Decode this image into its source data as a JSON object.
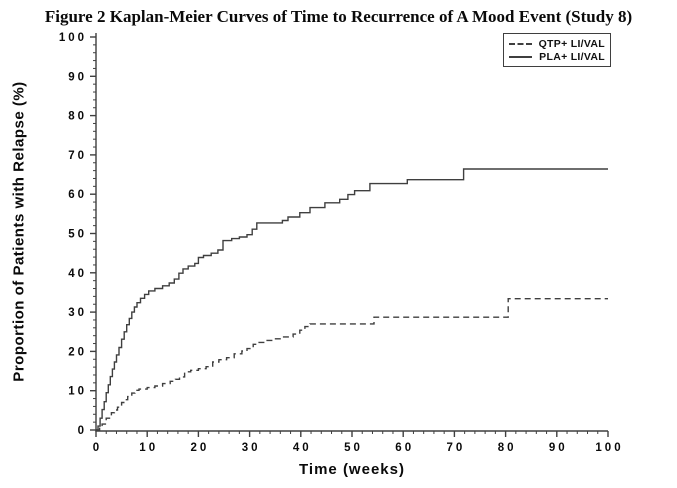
{
  "page": {
    "background": "#ffffff",
    "text_color": "#0a0a0a",
    "line_color": "#3f3f3f"
  },
  "figure_title": "Figure 2 Kaplan-Meier Curves of Time to Recurrence of A Mood Event (Study 8)",
  "chart_data": {
    "type": "line",
    "variant": "kaplan_meier_step",
    "title": "Figure 2 Kaplan-Meier Curves of Time to Recurrence of A Mood Event (Study 8)",
    "xlabel": "Time (weeks)",
    "ylabel": "Proportion of Patients with Relapse (%)",
    "xlim": [
      0,
      100
    ],
    "ylim": [
      0,
      100
    ],
    "x_major_ticks": [
      0,
      10,
      20,
      30,
      40,
      50,
      60,
      70,
      80,
      90,
      100
    ],
    "y_major_ticks": [
      0,
      10,
      20,
      30,
      40,
      50,
      60,
      70,
      80,
      90,
      100
    ],
    "x_minor_tick_step": 2,
    "y_minor_tick_step": 2,
    "grid": false,
    "legend_position": "top-right",
    "line_color": "#3f3f3f",
    "series": [
      {
        "name": "QTP+ LI/VAL",
        "line_style": "dashed",
        "points": [
          [
            0,
            0
          ],
          [
            0.7,
            0.7
          ],
          [
            1.2,
            1.5
          ],
          [
            2,
            3
          ],
          [
            3,
            4.4
          ],
          [
            3.6,
            5.1
          ],
          [
            4.2,
            5.8
          ],
          [
            5,
            7
          ],
          [
            5.6,
            7.7
          ],
          [
            6.2,
            8.5
          ],
          [
            7,
            9.4
          ],
          [
            7.6,
            10.1
          ],
          [
            8.4,
            10.4
          ],
          [
            10,
            10.8
          ],
          [
            11.5,
            11.2
          ],
          [
            13,
            11.8
          ],
          [
            14.5,
            12.4
          ],
          [
            15.5,
            12.9
          ],
          [
            16.3,
            13.5
          ],
          [
            17.3,
            14.8
          ],
          [
            18.5,
            15.2
          ],
          [
            20,
            15.6
          ],
          [
            21.5,
            16.1
          ],
          [
            22.8,
            17.3
          ],
          [
            24,
            17.9
          ],
          [
            25.5,
            18.4
          ],
          [
            27,
            19.4
          ],
          [
            28.5,
            20.1
          ],
          [
            29.5,
            20.7
          ],
          [
            30.7,
            21.8
          ],
          [
            31.5,
            22.3
          ],
          [
            33,
            22.8
          ],
          [
            34.5,
            23.2
          ],
          [
            36.5,
            23.7
          ],
          [
            38.5,
            24.4
          ],
          [
            39.8,
            25.4
          ],
          [
            40.8,
            26.3
          ],
          [
            41.8,
            27
          ],
          [
            54.3,
            28.7
          ],
          [
            80.5,
            33.4
          ],
          [
            100,
            33.4
          ]
        ]
      },
      {
        "name": "PLA+ LI/VAL",
        "line_style": "solid",
        "points": [
          [
            0,
            0
          ],
          [
            0.4,
            1
          ],
          [
            0.8,
            3
          ],
          [
            1.2,
            5.2
          ],
          [
            1.6,
            7.2
          ],
          [
            2,
            9.5
          ],
          [
            2.4,
            11.5
          ],
          [
            2.8,
            13.6
          ],
          [
            3.2,
            15.5
          ],
          [
            3.6,
            17.3
          ],
          [
            4,
            19.1
          ],
          [
            4.5,
            21
          ],
          [
            5,
            23.1
          ],
          [
            5.5,
            25
          ],
          [
            6,
            26.8
          ],
          [
            6.5,
            28.4
          ],
          [
            7,
            30
          ],
          [
            7.5,
            31.3
          ],
          [
            8,
            32.4
          ],
          [
            8.7,
            33.5
          ],
          [
            9.5,
            34.5
          ],
          [
            10.3,
            35.4
          ],
          [
            11.5,
            36
          ],
          [
            13,
            36.7
          ],
          [
            14.3,
            37.4
          ],
          [
            15.3,
            38.4
          ],
          [
            16.2,
            39.9
          ],
          [
            17,
            41
          ],
          [
            18,
            41.7
          ],
          [
            19.3,
            42.4
          ],
          [
            20,
            43.9
          ],
          [
            21,
            44.4
          ],
          [
            22.5,
            45
          ],
          [
            23.8,
            45.8
          ],
          [
            24.8,
            48.2
          ],
          [
            26.5,
            48.7
          ],
          [
            28,
            49.1
          ],
          [
            29.5,
            49.7
          ],
          [
            30.5,
            51.1
          ],
          [
            31.4,
            52.7
          ],
          [
            36.4,
            53.3
          ],
          [
            37.5,
            54.2
          ],
          [
            39.8,
            55.3
          ],
          [
            41.8,
            56.6
          ],
          [
            44.7,
            57.8
          ],
          [
            47.6,
            58.7
          ],
          [
            49.2,
            59.9
          ],
          [
            50.5,
            60.9
          ],
          [
            53.5,
            62.7
          ],
          [
            60.8,
            63.7
          ],
          [
            71.8,
            66.4
          ],
          [
            100,
            66.4
          ]
        ]
      }
    ]
  }
}
